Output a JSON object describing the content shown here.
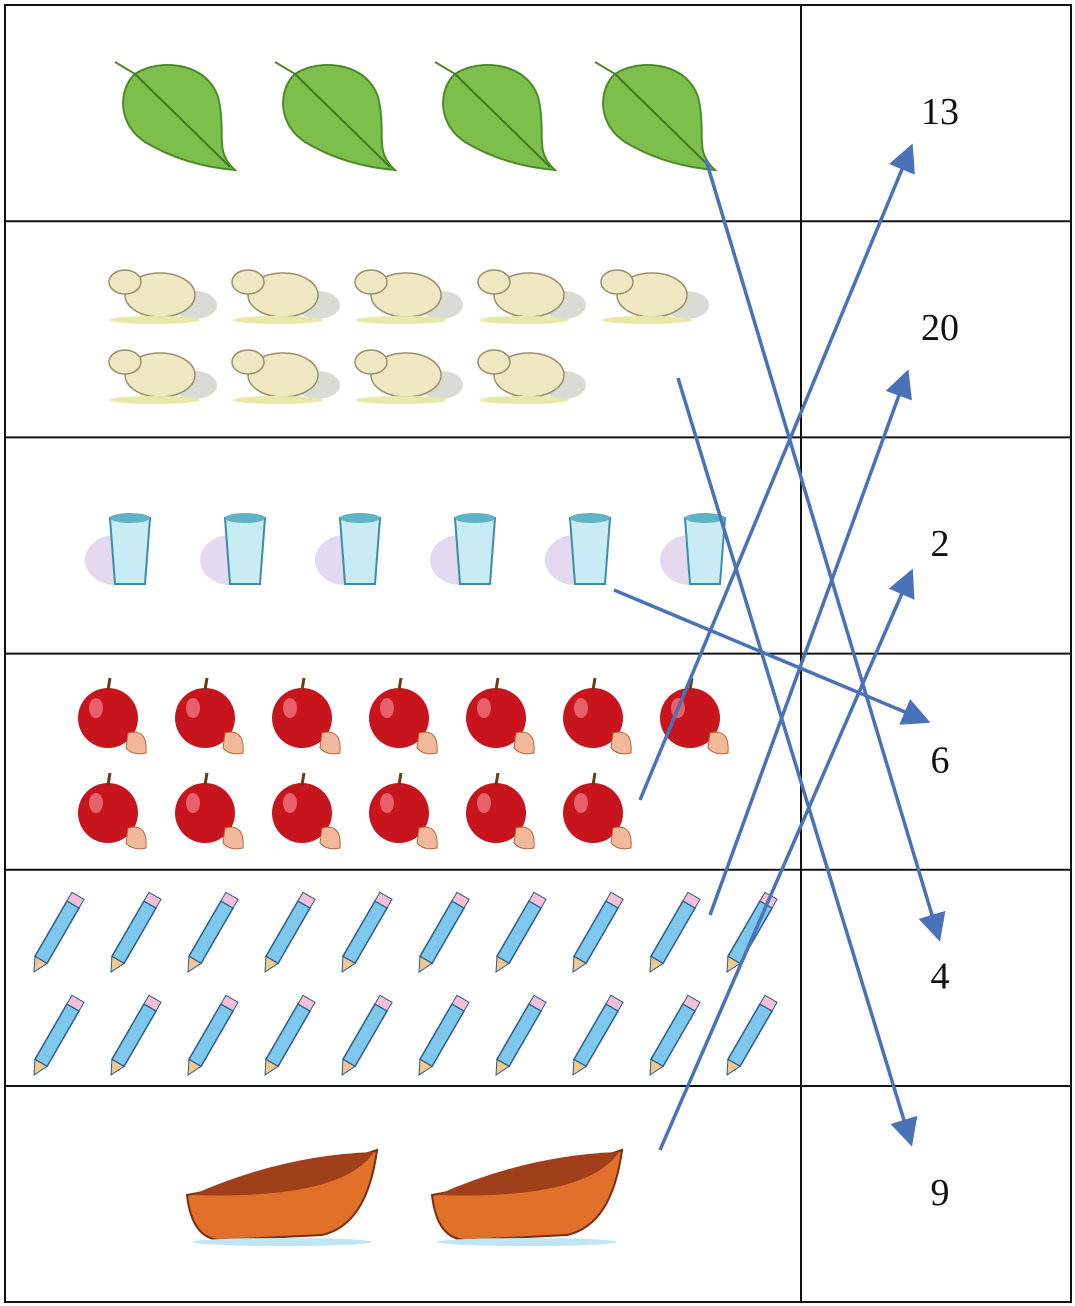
{
  "rows": [
    {
      "count": 4
    },
    {
      "count": 9
    },
    {
      "count": 6
    },
    {
      "count": 13
    },
    {
      "count": 20
    },
    {
      "count": 2
    }
  ],
  "numbers": [
    13,
    20,
    2,
    6,
    4,
    9
  ]
}
